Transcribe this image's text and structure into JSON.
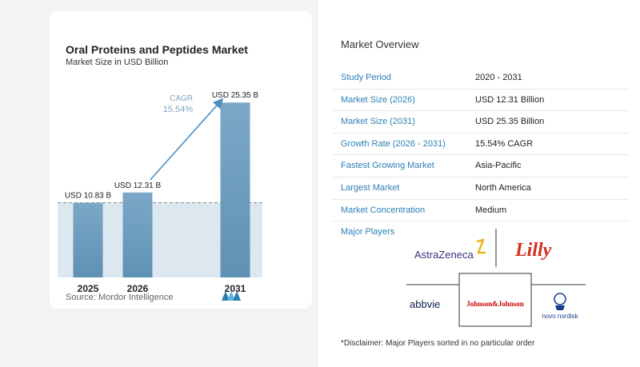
{
  "chart": {
    "title": "Oral Proteins and Peptides Market",
    "subtitle": "Market Size in USD Billion",
    "source": "Source: Mordor Intelligence",
    "cagr_label": "CAGR",
    "cagr_value": "15.54%"
  },
  "chart_data": {
    "type": "bar",
    "categories": [
      "2025",
      "2026",
      "2031"
    ],
    "values": [
      10.83,
      12.31,
      25.35
    ],
    "value_labels": [
      "USD 10.83 B",
      "USD 12.31 B",
      "USD 25.35 B"
    ],
    "title": "Oral Proteins and Peptides Market",
    "subtitle": "Market Size in USD Billion",
    "xlabel": "",
    "ylabel": "",
    "ylim": [
      0,
      27
    ],
    "grid": false,
    "annotation": "CAGR 15.54%",
    "colors": {
      "bar_top": "#7ba8c7",
      "bar_bottom": "#5f91b5",
      "shade": "#dde7ef",
      "arrow": "#4f8fc0",
      "dashed_line": "#888888"
    }
  },
  "overview": {
    "title": "Market Overview",
    "rows": [
      {
        "label": "Study Period",
        "value": "2020 - 2031"
      },
      {
        "label": "Market Size (2026)",
        "value": "USD 12.31 Billion"
      },
      {
        "label": "Market Size (2031)",
        "value": "USD 25.35 Billion"
      },
      {
        "label": "Growth Rate (2026 - 2031)",
        "value": "15.54% CAGR"
      },
      {
        "label": "Fastest Growing Market",
        "value": "Asia-Pacific"
      },
      {
        "label": "Largest Market",
        "value": "North America"
      },
      {
        "label": "Market Concentration",
        "value": "Medium"
      }
    ]
  },
  "players": {
    "title": "Major Players",
    "list": [
      "AstraZeneca",
      "Lilly",
      "abbvie",
      "Johnson&Johnson",
      "novo nordisk"
    ]
  },
  "disclaimer": "*Disclaimer: Major Players sorted in no particular order"
}
